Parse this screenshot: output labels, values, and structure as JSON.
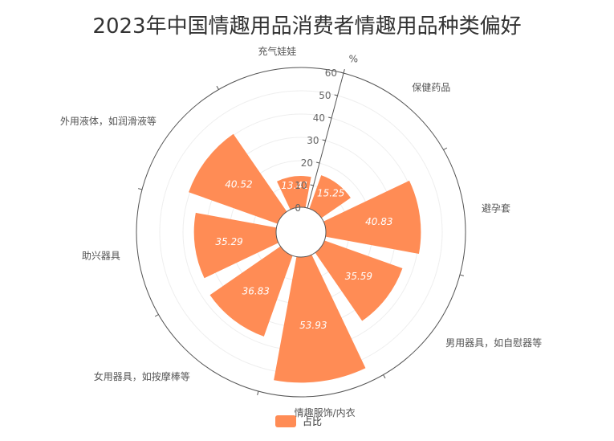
{
  "chart_data": {
    "type": "polar-bar",
    "title": "2023年中国情趣用品消费者情趣用品种类偏好",
    "categories": [
      "保健药品",
      "避孕套",
      "男用器具，如自慰器等",
      "情趣服饰/内衣",
      "女用器具，如按摩棒等",
      "助兴器具",
      "外用液体，如润滑液等",
      "充气娃娃"
    ],
    "series": [
      {
        "name": "占比",
        "values": [
          15.25,
          40.83,
          35.59,
          53.93,
          36.83,
          35.29,
          40.52,
          13.41
        ]
      }
    ],
    "radial_axis": {
      "min": 0,
      "max": 60,
      "ticks": [
        0,
        10,
        20,
        30,
        40,
        50,
        60
      ],
      "unit": "%"
    },
    "colors": {
      "bar": "#ff8c55",
      "axis": "#555555",
      "grid": "#eeeeee"
    },
    "legend": {
      "position": "bottom-center"
    }
  }
}
